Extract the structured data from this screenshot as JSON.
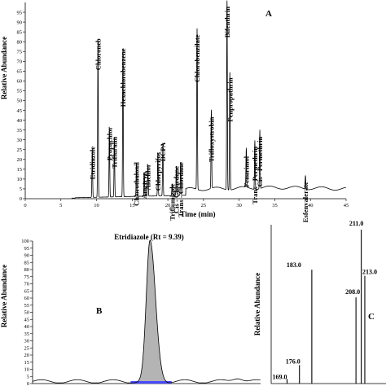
{
  "chart_data": [
    {
      "type": "line",
      "panel": "A",
      "xlabel": "Time (min)",
      "ylabel": "Relative Abundance",
      "xlim": [
        0,
        45
      ],
      "xticks": [
        0,
        5,
        10,
        15,
        20,
        25,
        30,
        35,
        40,
        45
      ],
      "ylim": [
        0,
        100
      ],
      "yticks": [
        0,
        5,
        10,
        15,
        20,
        25,
        30,
        35,
        40,
        45,
        50,
        55,
        60,
        65,
        70,
        75,
        80,
        85,
        90,
        95
      ],
      "grid": false,
      "peaks": [
        {
          "label": "Etridiazole",
          "rt": 9.4,
          "height": 25
        },
        {
          "label": "Chloroneb",
          "rt": 10.2,
          "height": 80
        },
        {
          "label": "Propachlor",
          "rt": 11.8,
          "height": 35
        },
        {
          "label": "Trifluralin",
          "rt": 12.5,
          "height": 30
        },
        {
          "label": "Hexachlorobenzene",
          "rt": 13.7,
          "height": 75
        },
        {
          "label": "Chlorothalonil",
          "rt": 15.6,
          "height": 17
        },
        {
          "label": "Ametryn",
          "rt": 16.7,
          "height": 12
        },
        {
          "label": "Alachlor",
          "rt": 17.2,
          "height": 16
        },
        {
          "label": "Chlorpyrifos",
          "rt": 18.6,
          "height": 22
        },
        {
          "label": "DCPA",
          "rt": 19.3,
          "height": 27
        },
        {
          "label": "Triflumizole",
          "rt": 20.6,
          "height": 6
        },
        {
          "label": "Cis - Chlordane",
          "rt": 21.2,
          "height": 15
        },
        {
          "label": "Trans - Chlordane",
          "rt": 21.8,
          "height": 17
        },
        {
          "label": "Chlorobenzilate",
          "rt": 24.1,
          "height": 82
        },
        {
          "label": "Trifloxystrobin",
          "rt": 26.1,
          "height": 40
        },
        {
          "label": "Bifenthrin",
          "rt": 28.3,
          "height": 100
        },
        {
          "label": "Fenpropathrin",
          "rt": 28.7,
          "height": 60
        },
        {
          "label": "Fenarimol",
          "rt": 31.0,
          "height": 20
        },
        {
          "label": "Trans - Permethrin",
          "rt": 32.2,
          "height": 25
        },
        {
          "label": "Cis - Permethrin",
          "rt": 32.9,
          "height": 30
        },
        {
          "label": "Esfenvalerate",
          "rt": 39.3,
          "height": 7
        }
      ]
    },
    {
      "type": "area",
      "panel": "B",
      "title": "Etridiazole (Rt = 9.39)",
      "ylabel": "Relative Abundance",
      "ylim": [
        0,
        100
      ],
      "yticks": [
        0,
        5,
        10,
        15,
        20,
        25,
        30,
        35,
        40,
        45,
        50,
        55,
        60,
        65,
        70,
        75,
        80,
        85,
        90,
        95,
        100
      ],
      "peak": {
        "rt": 9.39,
        "height": 98
      }
    },
    {
      "type": "bar",
      "panel": "C",
      "ylabel": "Relative Abundance",
      "ylim": [
        0,
        100
      ],
      "labeled_ions": [
        {
          "mz": 169.0,
          "value": 3
        },
        {
          "mz": 176.0,
          "value": 12
        },
        {
          "mz": 183.0,
          "value": 74
        },
        {
          "mz": 208.0,
          "value": 56
        },
        {
          "mz": 211.0,
          "value": 100
        },
        {
          "mz": 213.0,
          "value": 70
        }
      ]
    }
  ],
  "panel_letters": {
    "a": "A",
    "b": "B",
    "c": "C"
  },
  "colors": {
    "trace": "#000000",
    "peak_fill": "#b4b4b4",
    "baseline_fill": "#4a4aff"
  }
}
